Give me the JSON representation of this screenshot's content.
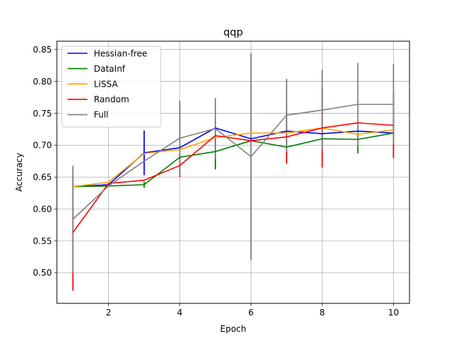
{
  "chart_data": {
    "type": "line",
    "title": "qqp",
    "xlabel": "Epoch",
    "ylabel": "Accuracy",
    "xlim": [
      0.55,
      10.45
    ],
    "ylim": [
      0.452,
      0.863
    ],
    "xticks": [
      2,
      4,
      6,
      8,
      10
    ],
    "xtick_labels": [
      "2",
      "4",
      "6",
      "8",
      "10"
    ],
    "yticks": [
      0.5,
      0.55,
      0.6,
      0.65,
      0.7,
      0.75,
      0.8,
      0.85
    ],
    "ytick_labels": [
      "0.50",
      "0.55",
      "0.60",
      "0.65",
      "0.70",
      "0.75",
      "0.80",
      "0.85"
    ],
    "grid": true,
    "legend_position": "top-left",
    "x": [
      1,
      2,
      3,
      4,
      5,
      6,
      7,
      8,
      9,
      10
    ],
    "series": [
      {
        "name": "Hessian-free",
        "color": "#0000ff",
        "values": [
          0.635,
          0.638,
          0.688,
          0.696,
          0.727,
          0.71,
          0.722,
          0.718,
          0.722,
          0.719
        ],
        "errors": [
          0.0,
          0.0,
          0.035,
          0.0,
          0.0,
          0.0,
          0.0,
          0.0,
          0.0,
          0.0
        ]
      },
      {
        "name": "DataInf",
        "color": "#008000",
        "values": [
          0.635,
          0.636,
          0.638,
          0.681,
          0.69,
          0.707,
          0.697,
          0.71,
          0.709,
          0.719
        ],
        "errors": [
          0.0,
          0.0,
          0.005,
          0.0,
          0.028,
          0.0,
          0.0,
          0.0,
          0.022,
          0.0
        ]
      },
      {
        "name": "LiSSA",
        "color": "#ffa500",
        "values": [
          0.635,
          0.642,
          0.687,
          0.693,
          0.712,
          0.719,
          0.719,
          0.727,
          0.717,
          0.724
        ],
        "errors": [
          0.0,
          0.0,
          0.0,
          0.0,
          0.0,
          0.0,
          0.0,
          0.0,
          0.0,
          0.0
        ]
      },
      {
        "name": "Random",
        "color": "#ff0000",
        "values": [
          0.563,
          0.64,
          0.645,
          0.668,
          0.715,
          0.707,
          0.713,
          0.727,
          0.735,
          0.731
        ],
        "errors": [
          0.091,
          0.0,
          0.0,
          0.018,
          0.0,
          0.0,
          0.042,
          0.062,
          0.0,
          0.051
        ]
      },
      {
        "name": "Full",
        "color": "#808080",
        "values": [
          0.584,
          0.636,
          0.675,
          0.711,
          0.726,
          0.682,
          0.747,
          0.755,
          0.764,
          0.764
        ],
        "errors": [
          0.084,
          0.0,
          0.0,
          0.059,
          0.048,
          0.162,
          0.057,
          0.063,
          0.065,
          0.063
        ]
      }
    ]
  }
}
